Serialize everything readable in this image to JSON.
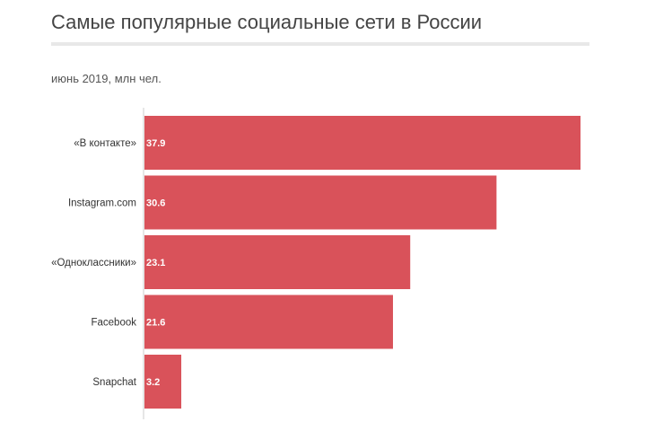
{
  "header": {
    "title": "Самые популярные социальные сети в России",
    "subtitle": "июнь 2019, млн чел."
  },
  "colors": {
    "bar": "#d9525a",
    "axis": "#cccccc"
  },
  "chart_data": {
    "type": "bar",
    "orientation": "horizontal",
    "title": "Самые популярные социальные сети в России",
    "subtitle": "июнь 2019, млн чел.",
    "categories": [
      "«В контакте»",
      "Instagram.com",
      "«Одноклассники»",
      "Facebook",
      "Snapchat"
    ],
    "values": [
      37.9,
      30.6,
      23.1,
      21.6,
      3.2
    ],
    "value_labels": [
      "37.9",
      "30.6",
      "23.1",
      "21.6",
      "3.2"
    ],
    "xlim": [
      0,
      37.9
    ],
    "grid": false,
    "legend": "none"
  }
}
